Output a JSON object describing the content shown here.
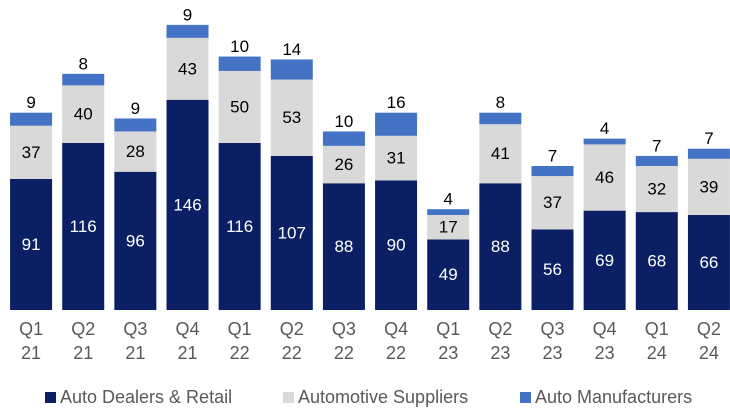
{
  "chart_data": {
    "type": "stacked_bar",
    "categories": [
      [
        "Q1",
        "21"
      ],
      [
        "Q2",
        "21"
      ],
      [
        "Q3",
        "21"
      ],
      [
        "Q4",
        "21"
      ],
      [
        "Q1",
        "22"
      ],
      [
        "Q2",
        "22"
      ],
      [
        "Q3",
        "22"
      ],
      [
        "Q4",
        "22"
      ],
      [
        "Q1",
        "23"
      ],
      [
        "Q2",
        "23"
      ],
      [
        "Q3",
        "23"
      ],
      [
        "Q4",
        "23"
      ],
      [
        "Q1",
        "24"
      ],
      [
        "Q2",
        "24"
      ]
    ],
    "series": [
      {
        "name": "Auto Dealers & Retail",
        "color": "#0b1f65",
        "values": [
          91,
          116,
          96,
          146,
          116,
          107,
          88,
          90,
          49,
          88,
          56,
          69,
          68,
          66
        ]
      },
      {
        "name": "Automotive Suppliers",
        "color": "#d9d9d9",
        "values": [
          37,
          40,
          28,
          43,
          50,
          53,
          26,
          31,
          17,
          41,
          37,
          46,
          32,
          39
        ]
      },
      {
        "name": "Auto Manufacturers",
        "color": "#4472c4",
        "values": [
          9,
          8,
          9,
          9,
          10,
          14,
          10,
          16,
          4,
          8,
          7,
          4,
          7,
          7
        ]
      }
    ],
    "ylim": [
      0,
      200
    ]
  }
}
